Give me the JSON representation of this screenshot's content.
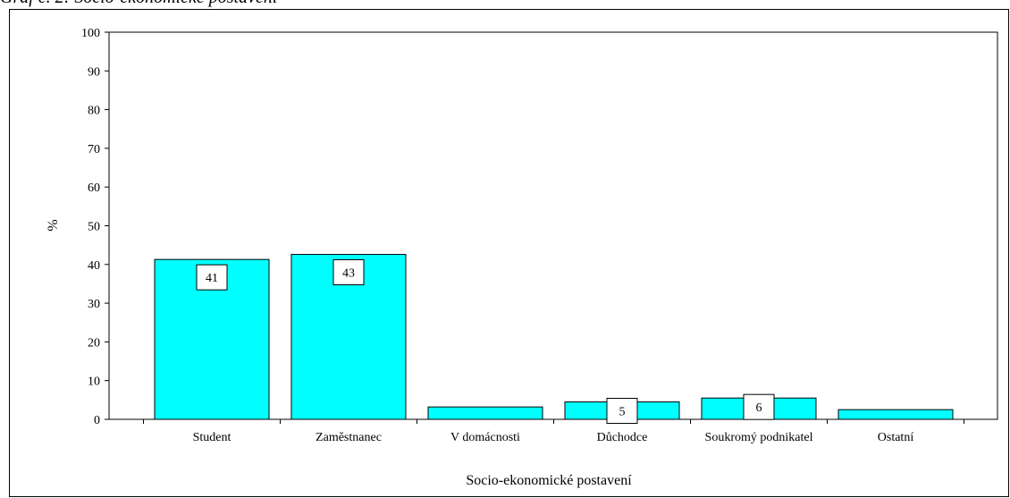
{
  "caption": "Graf č. 2: Socio-ekonomické postavení",
  "colors": {
    "bar_fill": "#00ffff",
    "bar_stroke": "#000000",
    "axis": "#000000",
    "background": "#ffffff"
  },
  "chart_data": {
    "type": "bar",
    "categories": [
      "Student",
      "Zaměstnanec",
      "V domácnosti",
      "Důchodce",
      "Soukromý podnikatel",
      "Ostatní"
    ],
    "values": [
      41.3,
      42.6,
      3.2,
      4.5,
      5.5,
      2.5
    ],
    "data_labels": [
      "41",
      "43",
      "",
      "5",
      "6",
      ""
    ],
    "xlabel": "Socio-ekonomické postavení",
    "ylabel": "%",
    "ylim": [
      0,
      100
    ],
    "yticks": [
      0,
      10,
      20,
      30,
      40,
      50,
      60,
      70,
      80,
      90,
      100
    ],
    "grid": false,
    "legend": "none"
  }
}
